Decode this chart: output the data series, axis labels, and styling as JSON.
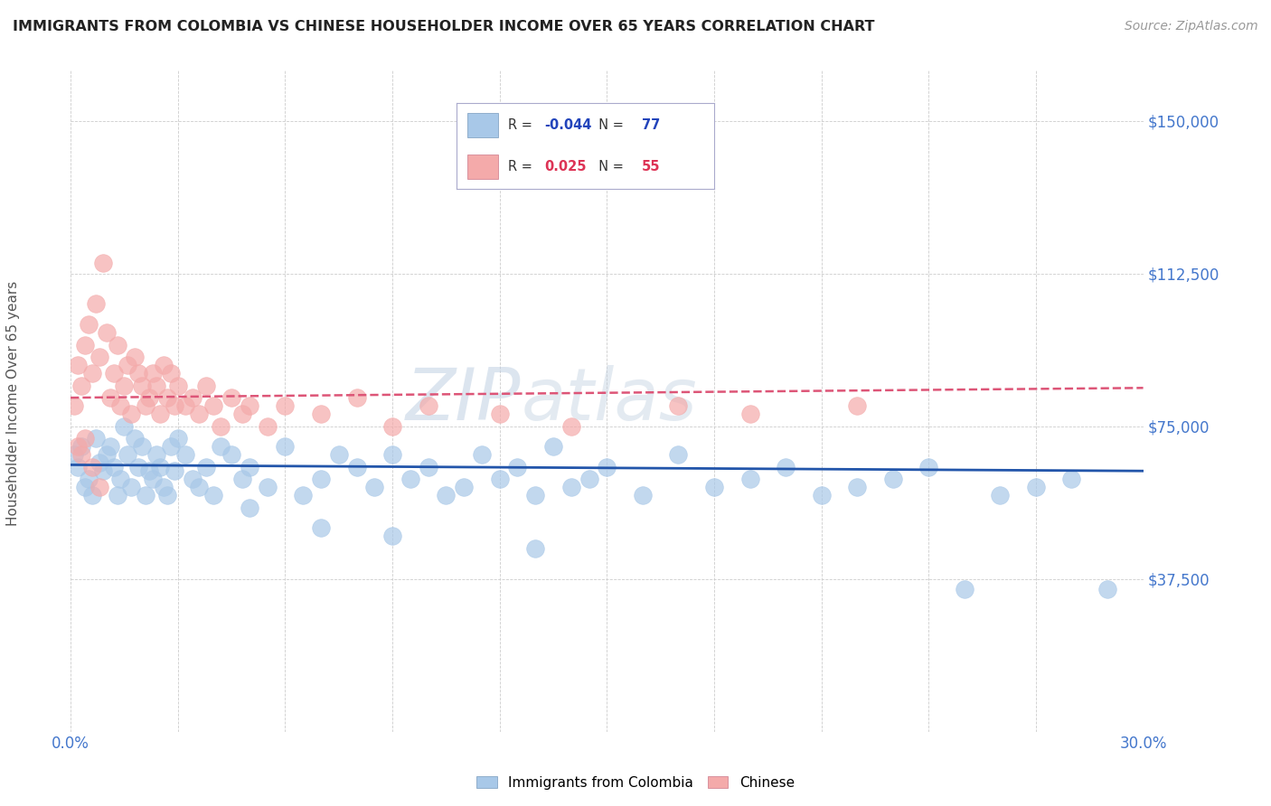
{
  "title": "IMMIGRANTS FROM COLOMBIA VS CHINESE HOUSEHOLDER INCOME OVER 65 YEARS CORRELATION CHART",
  "source": "Source: ZipAtlas.com",
  "ylabel": "Householder Income Over 65 years",
  "xlim": [
    0.0,
    0.3
  ],
  "ylim": [
    0,
    162500
  ],
  "yticks": [
    0,
    37500,
    75000,
    112500,
    150000
  ],
  "xtick_positions": [
    0.0,
    0.03,
    0.06,
    0.09,
    0.12,
    0.15,
    0.18,
    0.21,
    0.24,
    0.27,
    0.3
  ],
  "colombia_R": -0.044,
  "colombia_N": 77,
  "chinese_R": 0.025,
  "chinese_N": 55,
  "colombia_color": "#A8C8E8",
  "chinese_color": "#F4AAAA",
  "colombia_line_color": "#2255AA",
  "chinese_line_color": "#DD5577",
  "watermark_zip": "ZIP",
  "watermark_atlas": "atlas",
  "background_color": "#FFFFFF",
  "grid_color": "#CCCCCC",
  "title_color": "#222222",
  "axis_label_color": "#4477CC",
  "colombia_scatter_x": [
    0.001,
    0.002,
    0.003,
    0.004,
    0.005,
    0.006,
    0.007,
    0.008,
    0.009,
    0.01,
    0.011,
    0.012,
    0.013,
    0.014,
    0.015,
    0.016,
    0.017,
    0.018,
    0.019,
    0.02,
    0.021,
    0.022,
    0.023,
    0.024,
    0.025,
    0.026,
    0.027,
    0.028,
    0.029,
    0.03,
    0.032,
    0.034,
    0.036,
    0.038,
    0.04,
    0.042,
    0.045,
    0.048,
    0.05,
    0.055,
    0.06,
    0.065,
    0.07,
    0.075,
    0.08,
    0.085,
    0.09,
    0.095,
    0.1,
    0.105,
    0.11,
    0.115,
    0.12,
    0.125,
    0.13,
    0.135,
    0.14,
    0.145,
    0.15,
    0.16,
    0.17,
    0.18,
    0.19,
    0.2,
    0.21,
    0.22,
    0.23,
    0.24,
    0.25,
    0.26,
    0.27,
    0.28,
    0.29,
    0.13,
    0.09,
    0.07,
    0.05
  ],
  "colombia_scatter_y": [
    68000,
    65000,
    70000,
    60000,
    62000,
    58000,
    72000,
    66000,
    64000,
    68000,
    70000,
    65000,
    58000,
    62000,
    75000,
    68000,
    60000,
    72000,
    65000,
    70000,
    58000,
    64000,
    62000,
    68000,
    65000,
    60000,
    58000,
    70000,
    64000,
    72000,
    68000,
    62000,
    60000,
    65000,
    58000,
    70000,
    68000,
    62000,
    65000,
    60000,
    70000,
    58000,
    62000,
    68000,
    65000,
    60000,
    68000,
    62000,
    65000,
    58000,
    60000,
    68000,
    62000,
    65000,
    58000,
    70000,
    60000,
    62000,
    65000,
    58000,
    68000,
    60000,
    62000,
    65000,
    58000,
    60000,
    62000,
    65000,
    35000,
    58000,
    60000,
    62000,
    35000,
    45000,
    48000,
    50000,
    55000
  ],
  "chinese_scatter_x": [
    0.001,
    0.002,
    0.003,
    0.004,
    0.005,
    0.006,
    0.007,
    0.008,
    0.009,
    0.01,
    0.011,
    0.012,
    0.013,
    0.014,
    0.015,
    0.016,
    0.017,
    0.018,
    0.019,
    0.02,
    0.021,
    0.022,
    0.023,
    0.024,
    0.025,
    0.026,
    0.027,
    0.028,
    0.029,
    0.03,
    0.032,
    0.034,
    0.036,
    0.038,
    0.04,
    0.042,
    0.045,
    0.048,
    0.05,
    0.055,
    0.06,
    0.07,
    0.08,
    0.09,
    0.1,
    0.12,
    0.14,
    0.17,
    0.19,
    0.22,
    0.002,
    0.003,
    0.004,
    0.006,
    0.008
  ],
  "chinese_scatter_y": [
    80000,
    90000,
    85000,
    95000,
    100000,
    88000,
    105000,
    92000,
    115000,
    98000,
    82000,
    88000,
    95000,
    80000,
    85000,
    90000,
    78000,
    92000,
    88000,
    85000,
    80000,
    82000,
    88000,
    85000,
    78000,
    90000,
    82000,
    88000,
    80000,
    85000,
    80000,
    82000,
    78000,
    85000,
    80000,
    75000,
    82000,
    78000,
    80000,
    75000,
    80000,
    78000,
    82000,
    75000,
    80000,
    78000,
    75000,
    80000,
    78000,
    80000,
    70000,
    68000,
    72000,
    65000,
    60000
  ]
}
